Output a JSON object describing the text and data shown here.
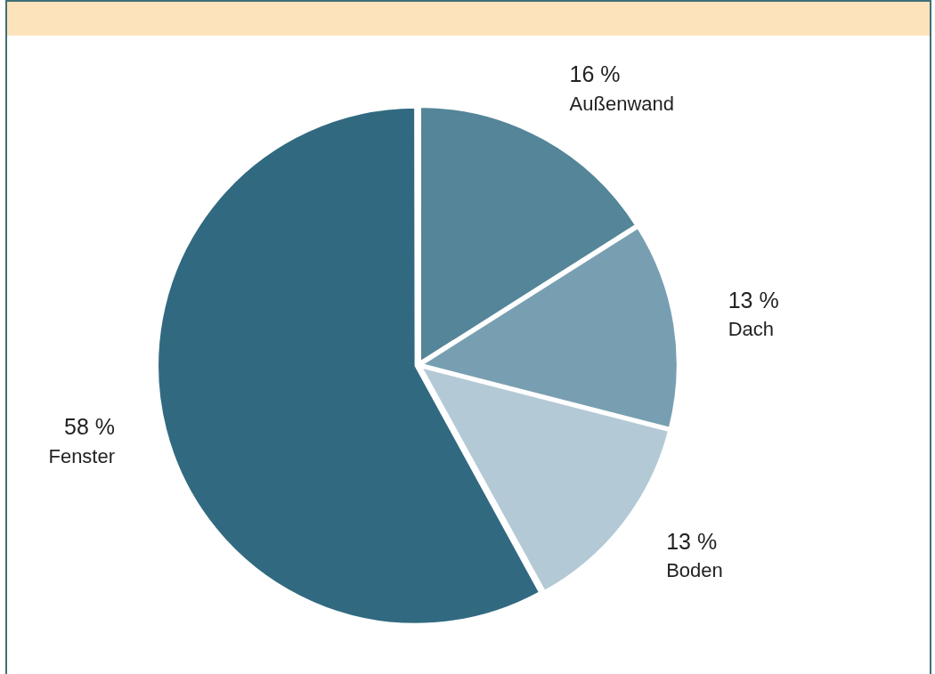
{
  "chart_data": {
    "type": "pie",
    "categories": [
      "Außenwand",
      "Dach",
      "Boden",
      "Fenster"
    ],
    "values": [
      16,
      13,
      13,
      58
    ],
    "value_labels": [
      "16 %",
      "13 %",
      "13 %",
      "58 %"
    ],
    "colors": [
      "#548598",
      "#789fb1",
      "#b3c9d6",
      "#316a80"
    ],
    "legend": false
  }
}
